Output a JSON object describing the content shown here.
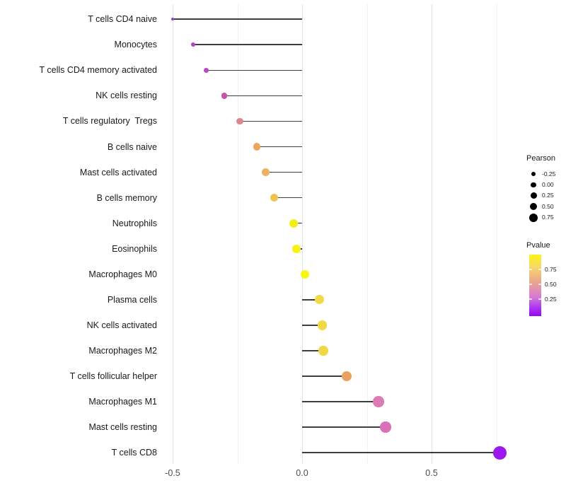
{
  "chart_data": {
    "type": "scatter",
    "subtype": "lollipop-correlation-plot",
    "title": "",
    "xlabel": "",
    "ylabel": "",
    "x_axis": {
      "range": [
        -0.55,
        0.85
      ],
      "major_ticks": [
        -0.5,
        0.0,
        0.5
      ],
      "tick_labels": [
        "-0.5",
        "0.0",
        "0.5"
      ],
      "minor_gridlines": [
        -0.25,
        0.25,
        0.75
      ],
      "grid": "vertical-only"
    },
    "points": [
      {
        "label": "T cells CD4 naive",
        "pearson": -0.5,
        "color": "#9f3bcb"
      },
      {
        "label": "Monocytes",
        "pearson": -0.42,
        "color": "#b840cb"
      },
      {
        "label": "T cells CD4 memory activated",
        "pearson": -0.37,
        "color": "#b948c6"
      },
      {
        "label": "NK cells resting",
        "pearson": -0.3,
        "color": "#c653a6"
      },
      {
        "label": "T cells regulatory  Tregs",
        "pearson": -0.24,
        "color": "#df868b"
      },
      {
        "label": "B cells naive",
        "pearson": -0.175,
        "color": "#eca55f"
      },
      {
        "label": "Mast cells activated",
        "pearson": -0.14,
        "color": "#eeb062"
      },
      {
        "label": "B cells memory",
        "pearson": -0.107,
        "color": "#f0c351"
      },
      {
        "label": "Neutrophils",
        "pearson": -0.033,
        "color": "#f5ed18"
      },
      {
        "label": "Eosinophils",
        "pearson": -0.022,
        "color": "#f7f310"
      },
      {
        "label": "Macrophages M0",
        "pearson": 0.011,
        "color": "#f8f60d"
      },
      {
        "label": "Plasma cells",
        "pearson": 0.068,
        "color": "#f2da46"
      },
      {
        "label": "NK cells activated",
        "pearson": 0.077,
        "color": "#f1d844"
      },
      {
        "label": "Macrophages M2",
        "pearson": 0.082,
        "color": "#f1d743"
      },
      {
        "label": "T cells follicular helper",
        "pearson": 0.172,
        "color": "#eaa15e"
      },
      {
        "label": "Macrophages M1",
        "pearson": 0.295,
        "color": "#dd7bb2"
      },
      {
        "label": "Mast cells resting",
        "pearson": 0.322,
        "color": "#da70b8"
      },
      {
        "label": "T cells CD8",
        "pearson": 0.763,
        "color": "#9c17ee"
      }
    ],
    "legend_size": {
      "title": "Pearson",
      "labels": [
        "-0.25",
        "0.00",
        "0.25",
        "0.50",
        "0.75"
      ],
      "values": [
        -0.25,
        0.0,
        0.25,
        0.5,
        0.75
      ],
      "position": "right"
    },
    "legend_color": {
      "title": "Pvalue",
      "labels": [
        "0.75",
        "0.50",
        "0.25"
      ],
      "values": [
        0.75,
        0.5,
        0.25
      ],
      "gradient_top_color": "#faf514",
      "gradient_bottom_color": "#9406f6",
      "position": "right"
    }
  }
}
